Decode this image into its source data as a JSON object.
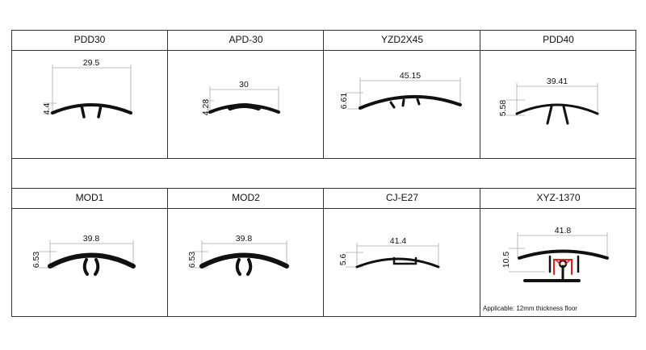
{
  "profiles": [
    {
      "name": "PDD30",
      "width": "29.5",
      "height": "4.4"
    },
    {
      "name": "APD-30",
      "width": "30",
      "height": "4.28"
    },
    {
      "name": "YZD2X45",
      "width": "45.15",
      "height": "6.61"
    },
    {
      "name": "PDD40",
      "width": "39.41",
      "height": "5.58"
    },
    {
      "name": "MOD1",
      "width": "39.8",
      "height": "6.53"
    },
    {
      "name": "MOD2",
      "width": "39.8",
      "height": "6.53"
    },
    {
      "name": "CJ-E27",
      "width": "41.4",
      "height": "5.6"
    },
    {
      "name": "XYZ-1370",
      "width": "41.8",
      "height": "10.5",
      "note": "Applicable: 12mm thickness floor"
    }
  ],
  "colors": {
    "border": "#333333",
    "profile": "#111111",
    "accent": "#e0201c"
  }
}
